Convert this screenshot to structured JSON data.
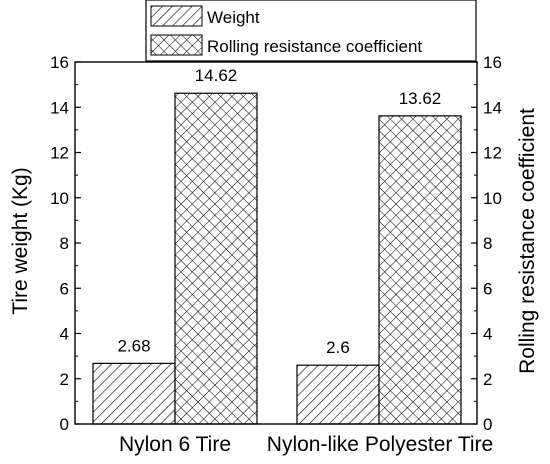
{
  "chart_data": {
    "type": "bar",
    "categories": [
      "Nylon 6 Tire",
      "Nylon-like Polyester Tire"
    ],
    "series": [
      {
        "name": "Weight",
        "values": [
          2.68,
          2.6
        ],
        "pattern": "diagonal-hatch",
        "axis": "left"
      },
      {
        "name": "Rolling resistance coefficient",
        "values": [
          14.62,
          13.62
        ],
        "pattern": "cross-hatch",
        "axis": "right"
      }
    ],
    "data_labels": [
      [
        "2.68",
        "2.6"
      ],
      [
        "14.62",
        "13.62"
      ]
    ],
    "ylabel": "Tire weight (Kg)",
    "y2label": "Rolling resistance coefficient",
    "ylim": [
      0,
      16
    ],
    "y2lim": [
      0,
      16
    ],
    "yticks": [
      0,
      2,
      4,
      6,
      8,
      10,
      12,
      14,
      16
    ],
    "legend_position": "top-center",
    "grid": false,
    "colors": {
      "bar_stroke": "#000000",
      "hatch": "#000000",
      "background": "#ffffff"
    }
  }
}
